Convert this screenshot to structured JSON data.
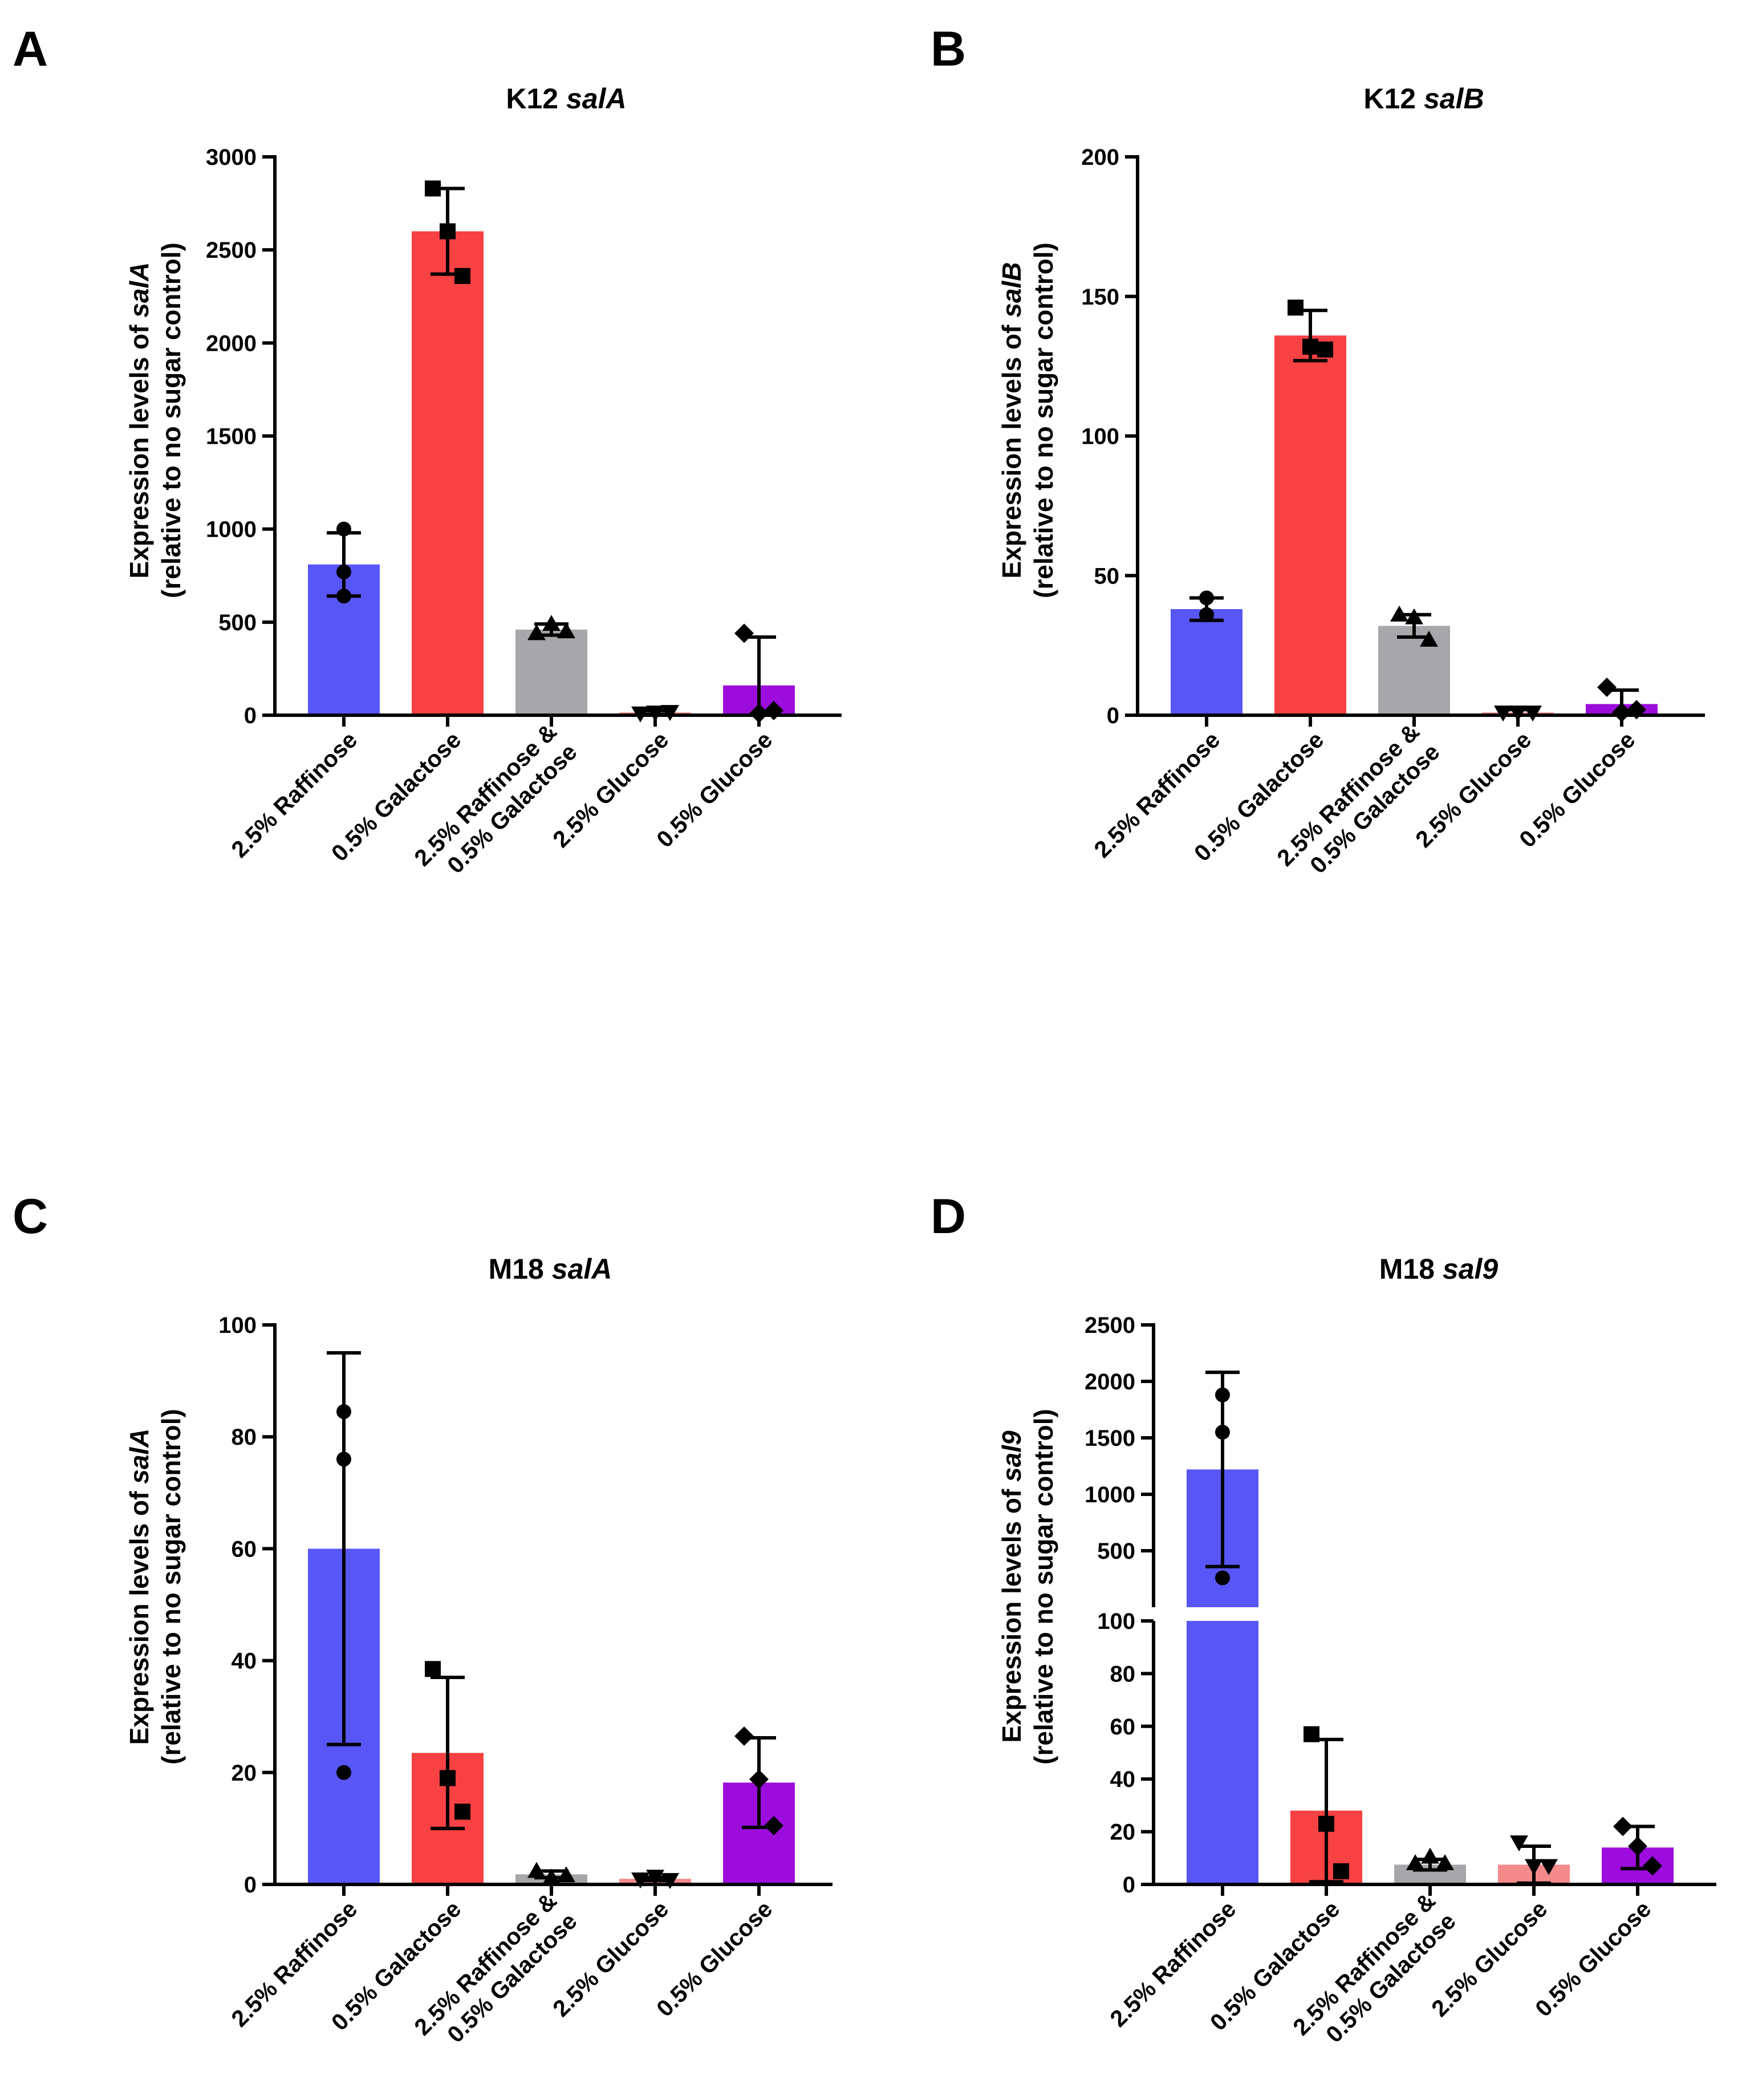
{
  "colors": {
    "raffinose": "#5856F6",
    "galactose": "#F74143",
    "mix": "#A7A7AB",
    "glucose_high": "#F58A8A",
    "glucose_low": "#9C0CDC"
  },
  "categories": [
    [
      "2.5% Raffinose"
    ],
    [
      "0.5% Galactose"
    ],
    [
      "2.5% Raffinose &",
      "0.5% Galactose"
    ],
    [
      "2.5% Glucose"
    ],
    [
      "0.5% Glucose"
    ]
  ],
  "chart_data": [
    {
      "type": "bar",
      "panel": "A",
      "title": "K12 ",
      "title_gene": "salA",
      "ylabel_prefix": "Expression levels of ",
      "ylabel_gene": "salA",
      "ylabel_line2": "(relative to no sugar control)",
      "ylim": [
        0,
        3000
      ],
      "yticks": [
        0,
        500,
        1000,
        1500,
        2000,
        2500,
        3000
      ],
      "values": [
        810,
        2600,
        460,
        15,
        160
      ],
      "sd": [
        170,
        230,
        30,
        10,
        260
      ],
      "points": [
        [
          1000,
          770,
          640
        ],
        [
          2830,
          2600,
          2360
        ],
        [
          440,
          490,
          450
        ],
        [
          10,
          15,
          18
        ],
        [
          440,
          10,
          25
        ]
      ],
      "markers": [
        "circle",
        "square",
        "triangle-up",
        "triangle-down",
        "diamond"
      ]
    },
    {
      "type": "bar",
      "panel": "B",
      "title": "K12 ",
      "title_gene": "salB",
      "ylabel_prefix": "Expression levels of ",
      "ylabel_gene": "salB",
      "ylabel_line2": "(relative to no sugar control)",
      "ylim": [
        0,
        200
      ],
      "yticks": [
        0,
        50,
        100,
        150,
        200
      ],
      "values": [
        38,
        136,
        32,
        1,
        4
      ],
      "sd": [
        4,
        9,
        4,
        1,
        5
      ],
      "points": [
        [
          42,
          36,
          36
        ],
        [
          146,
          132,
          131
        ],
        [
          36,
          35,
          27
        ],
        [
          1,
          1,
          1
        ],
        [
          10,
          1,
          2
        ]
      ],
      "markers": [
        "circle",
        "square",
        "triangle-up",
        "triangle-down",
        "diamond"
      ]
    },
    {
      "type": "bar",
      "panel": "C",
      "title": "M18 ",
      "title_gene": "salA",
      "ylabel_prefix": "Expression levels of ",
      "ylabel_gene": "salA",
      "ylabel_line2": "(relative to no sugar control)",
      "ylim": [
        0,
        100
      ],
      "yticks": [
        0,
        20,
        40,
        60,
        80,
        100
      ],
      "values": [
        60,
        23.5,
        1.8,
        1,
        18.2
      ],
      "sd": [
        35,
        13.5,
        0.6,
        0.3,
        8
      ],
      "points": [
        [
          84.5,
          76,
          20
        ],
        [
          38.5,
          19,
          13
        ],
        [
          2.4,
          1.2,
          1.6
        ],
        [
          0.9,
          1.4,
          0.8
        ],
        [
          26.5,
          18.8,
          10.5
        ]
      ],
      "markers": [
        "circle",
        "square",
        "triangle-up",
        "triangle-down",
        "diamond"
      ]
    },
    {
      "type": "bar",
      "panel": "D",
      "title": "M18 ",
      "title_gene": "sal9",
      "ylabel_prefix": "Expression levels of ",
      "ylabel_gene": "sal9",
      "ylabel_line2": "(relative to no sugar control)",
      "axis_break": true,
      "lower_ylim": [
        0,
        100
      ],
      "lower_yticks": [
        0,
        20,
        40,
        60,
        80,
        100
      ],
      "upper_ylim": [
        0,
        2500
      ],
      "upper_yticks": [
        500,
        1000,
        1500,
        2000,
        2500
      ],
      "values": [
        1220,
        28,
        7.5,
        7.5,
        14
      ],
      "sd": [
        860,
        27,
        2,
        7,
        8
      ],
      "points": [
        [
          1880,
          1550,
          260
        ],
        [
          57,
          23,
          5
        ],
        [
          8,
          10.5,
          8
        ],
        [
          16,
          7,
          7
        ],
        [
          22,
          14.5,
          7
        ]
      ],
      "markers": [
        "circle",
        "square",
        "triangle-up",
        "triangle-down",
        "diamond"
      ]
    }
  ]
}
